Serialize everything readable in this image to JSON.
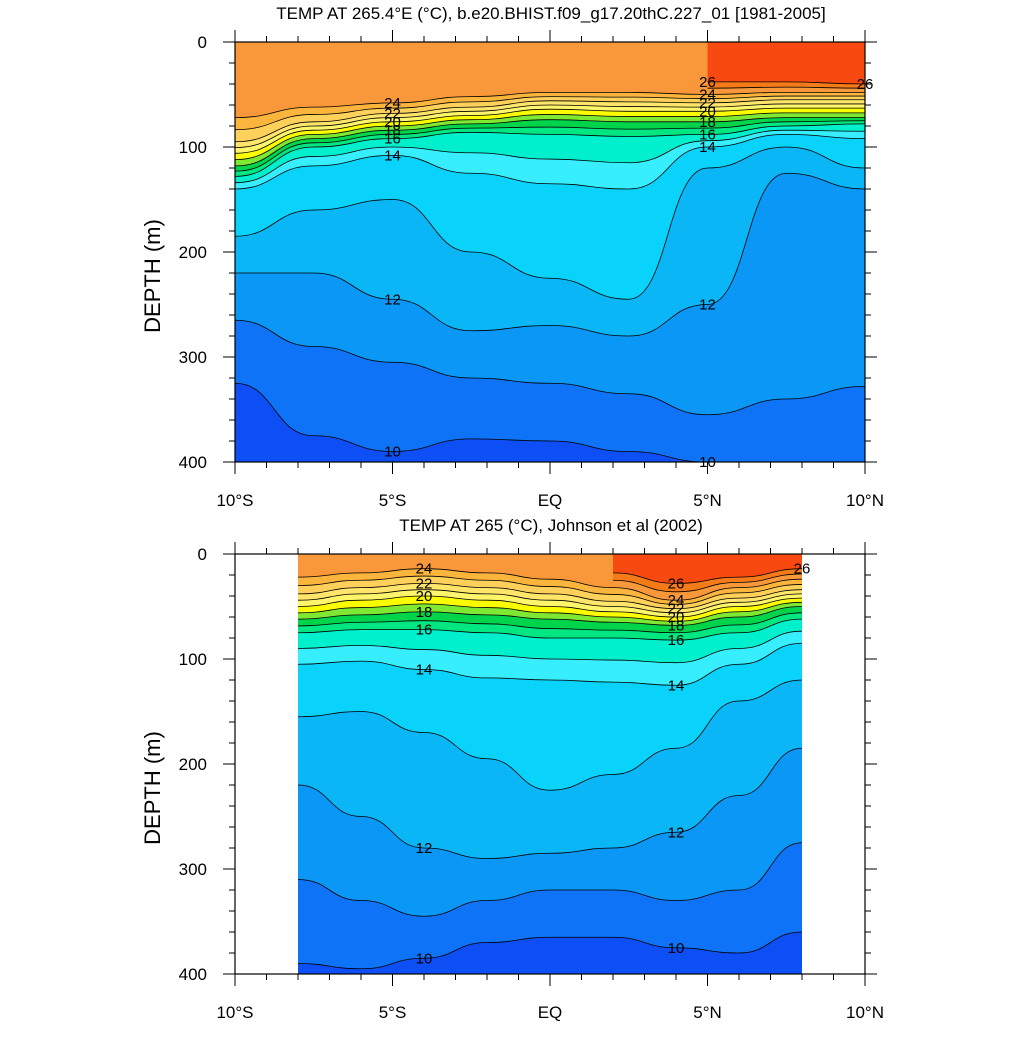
{
  "panels": [
    {
      "title": "TEMP AT 265.4°E (°C), b.e20.BHIST.f09_g17.20thC.227_01 [1981-2005]",
      "ylabel": "DEPTH (m)"
    },
    {
      "title": "TEMP AT 265 (°C), Johnson et al (2002)",
      "ylabel": "DEPTH (m)"
    }
  ],
  "chart_data": [
    {
      "type": "heatmap",
      "title": "TEMP AT 265.4°E (°C), b.e20.BHIST.f09_g17.20thC.227_01 [1981-2005]",
      "xlabel": "",
      "ylabel": "DEPTH (m)",
      "xlim": [
        -10,
        10
      ],
      "ylim": [
        400,
        0
      ],
      "x_ticks": [
        -10,
        -5,
        0,
        5,
        10
      ],
      "x_tick_labels": [
        "10°S",
        "5°S",
        "EQ",
        "5°N",
        "10°N"
      ],
      "y_ticks": [
        0,
        100,
        200,
        300,
        400
      ],
      "y_tick_labels": [
        "0",
        "100",
        "200",
        "300",
        "400"
      ],
      "data_xlim": [
        -10,
        10
      ],
      "contour_interval": 1,
      "labeled_levels": [
        10,
        12,
        14,
        16,
        18,
        20,
        22,
        24,
        26
      ],
      "isotherm_depths": {
        "x": [
          -10,
          -7.5,
          -5,
          -2.5,
          0,
          2.5,
          5,
          7.5,
          10
        ],
        "10": [
          325,
          375,
          390,
          378,
          380,
          390,
          400,
          400,
          400
        ],
        "11": [
          265,
          290,
          305,
          320,
          325,
          335,
          355,
          340,
          328
        ],
        "12": [
          220,
          220,
          245,
          275,
          270,
          280,
          250,
          125,
          140
        ],
        "13": [
          185,
          160,
          150,
          200,
          225,
          245,
          120,
          100,
          120
        ],
        "14": [
          140,
          118,
          108,
          125,
          135,
          140,
          100,
          88,
          92
        ],
        "16": [
          128,
          100,
          92,
          86,
          88,
          90,
          88,
          80,
          78
        ],
        "18": [
          118,
          92,
          84,
          78,
          74,
          76,
          76,
          72,
          72
        ],
        "20": [
          106,
          84,
          76,
          70,
          64,
          66,
          66,
          63,
          63
        ],
        "22": [
          95,
          76,
          68,
          62,
          56,
          57,
          58,
          55,
          55
        ],
        "24": [
          72,
          62,
          58,
          52,
          48,
          48,
          50,
          48,
          48
        ],
        "26": [
          null,
          null,
          null,
          null,
          null,
          null,
          38,
          38,
          40
        ]
      }
    },
    {
      "type": "heatmap",
      "title": "TEMP AT 265 (°C), Johnson et al (2002)",
      "xlabel": "",
      "ylabel": "DEPTH (m)",
      "xlim": [
        -10,
        10
      ],
      "ylim": [
        400,
        0
      ],
      "x_ticks": [
        -10,
        -5,
        0,
        5,
        10
      ],
      "x_tick_labels": [
        "10°S",
        "5°S",
        "EQ",
        "5°N",
        "10°N"
      ],
      "y_ticks": [
        0,
        100,
        200,
        300,
        400
      ],
      "y_tick_labels": [
        "0",
        "100",
        "200",
        "300",
        "400"
      ],
      "data_xlim": [
        -8,
        8
      ],
      "contour_interval": 1,
      "labeled_levels": [
        10,
        12,
        14,
        16,
        18,
        20,
        22,
        24,
        26
      ],
      "isotherm_depths": {
        "x": [
          -8,
          -6,
          -4,
          -2,
          0,
          2,
          4,
          6,
          8
        ],
        "10": [
          390,
          395,
          385,
          370,
          365,
          365,
          375,
          380,
          360
        ],
        "11": [
          310,
          330,
          345,
          330,
          320,
          320,
          330,
          320,
          275
        ],
        "12": [
          220,
          250,
          280,
          290,
          285,
          280,
          265,
          230,
          185
        ],
        "13": [
          155,
          150,
          170,
          195,
          225,
          210,
          185,
          140,
          120
        ],
        "14": [
          105,
          102,
          110,
          118,
          120,
          122,
          125,
          105,
          85
        ],
        "16": [
          75,
          72,
          72,
          75,
          80,
          80,
          82,
          75,
          62
        ],
        "18": [
          62,
          58,
          55,
          58,
          62,
          65,
          68,
          60,
          50
        ],
        "20": [
          50,
          44,
          40,
          44,
          50,
          55,
          60,
          50,
          42
        ],
        "22": [
          38,
          32,
          28,
          32,
          38,
          45,
          52,
          42,
          34
        ],
        "24": [
          22,
          18,
          14,
          18,
          24,
          32,
          44,
          32,
          24
        ],
        "26": [
          null,
          null,
          null,
          null,
          null,
          18,
          28,
          22,
          14
        ]
      }
    }
  ]
}
